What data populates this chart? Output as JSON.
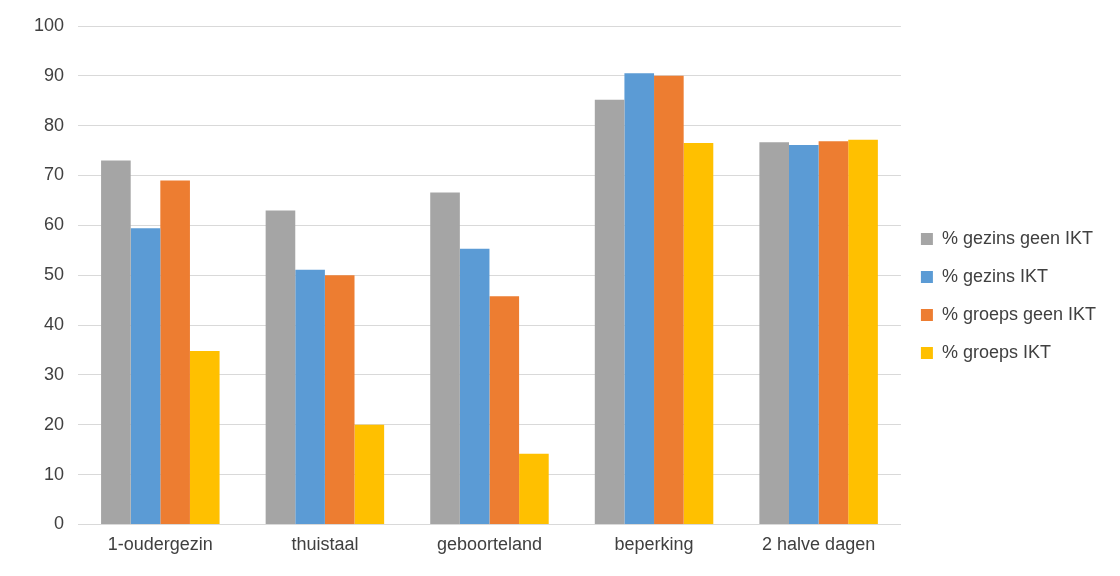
{
  "chart_data": {
    "type": "bar",
    "categories": [
      "1-oudergezin",
      "thuistaal",
      "geboorteland",
      "beperking",
      "2 halve dagen"
    ],
    "series": [
      {
        "name": "% gezins geen IKT",
        "color": "#a5a5a5",
        "values": [
          73,
          63,
          66.6,
          85.2,
          76.7
        ]
      },
      {
        "name": "% gezins IKT",
        "color": "#5b9bd5",
        "values": [
          59.4,
          51.1,
          55.3,
          90.5,
          76.1
        ]
      },
      {
        "name": "% groeps geen IKT",
        "color": "#ed7d31",
        "values": [
          69,
          50,
          45.8,
          90,
          76.9
        ]
      },
      {
        "name": "% groeps IKT",
        "color": "#ffc000",
        "values": [
          34.8,
          20,
          14.2,
          76.5,
          77.2
        ]
      }
    ],
    "ylim": [
      0,
      100
    ],
    "yticks": [
      0,
      10,
      20,
      30,
      40,
      50,
      60,
      70,
      80,
      90,
      100
    ],
    "grid": "y",
    "legend": "right"
  }
}
